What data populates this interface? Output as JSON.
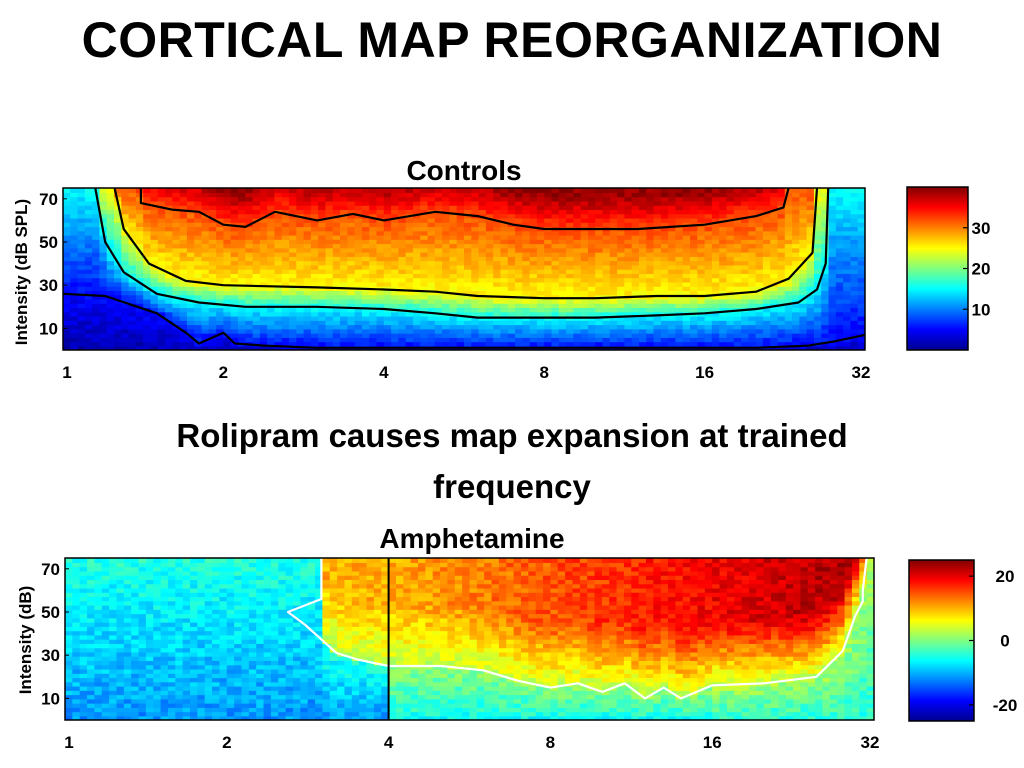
{
  "slide": {
    "title": "CORTICAL MAP REORGANIZATION",
    "subtitle": "Rolipram causes map expansion at trained frequency"
  },
  "chart_data": [
    {
      "type": "heatmap",
      "title": "Controls",
      "xlabel": "",
      "ylabel": "Intensity (dB SPL)",
      "x_scale": "log2",
      "xlim": [
        1,
        32
      ],
      "ylim": [
        0,
        75
      ],
      "xticks": [
        1,
        2,
        4,
        8,
        16,
        32
      ],
      "yticks": [
        10,
        30,
        50,
        70
      ],
      "colorbar": {
        "range": [
          0,
          40
        ],
        "ticks": [
          10,
          20,
          30
        ],
        "colormap": "jet"
      },
      "contour_levels": [
        {
          "level": 5,
          "color": "#000000",
          "threshold": [
            [
              1,
              26
            ],
            [
              1.2,
              25
            ],
            [
              1.5,
              17
            ],
            [
              1.7,
              8
            ],
            [
              1.8,
              3
            ],
            [
              2,
              8
            ],
            [
              2.1,
              3
            ],
            [
              2.4,
              2
            ],
            [
              3,
              1
            ],
            [
              5,
              1
            ],
            [
              8,
              1
            ],
            [
              10,
              1
            ],
            [
              14,
              1
            ],
            [
              20,
              1
            ],
            [
              25,
              2
            ],
            [
              28,
              4
            ],
            [
              32,
              7
            ]
          ]
        },
        {
          "level": 15,
          "color": "#000000",
          "threshold": [
            [
              1.15,
              75
            ],
            [
              1.2,
              50
            ],
            [
              1.3,
              36
            ],
            [
              1.5,
              26
            ],
            [
              1.8,
              22
            ],
            [
              2.2,
              20
            ],
            [
              3,
              20
            ],
            [
              4,
              19
            ],
            [
              5,
              17
            ],
            [
              6,
              15
            ],
            [
              8,
              15
            ],
            [
              10,
              15
            ],
            [
              13,
              16
            ],
            [
              16,
              17
            ],
            [
              20,
              19
            ],
            [
              24,
              22
            ],
            [
              26,
              28
            ],
            [
              27,
              40
            ],
            [
              27.3,
              75
            ]
          ]
        },
        {
          "level": 25,
          "color": "#000000",
          "threshold": [
            [
              1.25,
              75
            ],
            [
              1.3,
              56
            ],
            [
              1.45,
              40
            ],
            [
              1.7,
              32
            ],
            [
              2,
              30
            ],
            [
              3,
              29
            ],
            [
              4,
              28
            ],
            [
              5,
              27
            ],
            [
              6,
              25
            ],
            [
              8,
              24
            ],
            [
              10,
              24
            ],
            [
              13,
              25
            ],
            [
              16,
              25
            ],
            [
              20,
              27
            ],
            [
              23,
              33
            ],
            [
              25.5,
              45
            ],
            [
              26,
              75
            ]
          ]
        },
        {
          "level": 32,
          "color": "#000000",
          "threshold": [
            [
              1.4,
              75
            ],
            [
              1.4,
              68
            ],
            [
              1.6,
              65
            ],
            [
              1.8,
              64
            ],
            [
              2,
              58
            ],
            [
              2.2,
              57
            ],
            [
              2.5,
              64
            ],
            [
              3,
              60
            ],
            [
              3.5,
              63
            ],
            [
              4,
              60
            ],
            [
              5,
              64
            ],
            [
              6,
              62
            ],
            [
              7,
              58
            ],
            [
              8,
              56
            ],
            [
              10,
              56
            ],
            [
              12,
              56
            ],
            [
              16,
              58
            ],
            [
              20,
              62
            ],
            [
              22.5,
              66
            ],
            [
              23,
              75
            ]
          ]
        }
      ]
    },
    {
      "type": "heatmap",
      "title": "Amphetamine",
      "xlabel": "",
      "ylabel": "Intensity (dB)",
      "x_scale": "log2",
      "xlim": [
        1,
        32
      ],
      "ylim": [
        0,
        75
      ],
      "xticks": [
        1,
        2,
        4,
        8,
        16,
        32
      ],
      "yticks": [
        10,
        30,
        50,
        70
      ],
      "colorbar": {
        "range": [
          -25,
          25
        ],
        "ticks": [
          20,
          0,
          -20
        ],
        "colormap": "jet"
      },
      "trained_frequency": 4,
      "contour_levels": [
        {
          "level": 8,
          "color": "#ffffff",
          "threshold": [
            [
              3,
              75
            ],
            [
              3,
              56
            ],
            [
              2.6,
              50
            ],
            [
              2.8,
              44
            ],
            [
              3.2,
              31
            ],
            [
              3.5,
              28
            ],
            [
              4,
              25
            ],
            [
              5,
              25
            ],
            [
              6,
              23
            ],
            [
              7,
              18
            ],
            [
              8,
              15
            ],
            [
              9,
              17
            ],
            [
              10,
              13
            ],
            [
              11,
              17
            ],
            [
              12,
              10
            ],
            [
              13,
              15
            ],
            [
              14,
              10
            ],
            [
              16,
              16
            ],
            [
              20,
              17
            ],
            [
              25,
              20
            ],
            [
              28,
              32
            ],
            [
              29.5,
              48
            ],
            [
              30.5,
              55
            ],
            [
              30.5,
              60
            ],
            [
              31,
              75
            ]
          ]
        }
      ]
    }
  ]
}
